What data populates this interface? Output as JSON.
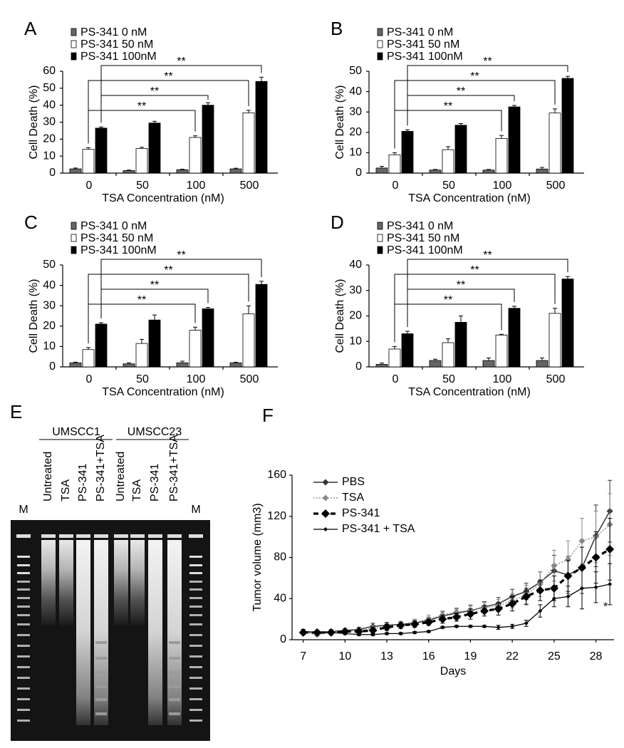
{
  "chart_data": [
    {
      "type": "bar",
      "panel_label": "A",
      "xlabel": "TSA Concentration (nM)",
      "ylabel": "Cell Death (%)",
      "categories": [
        "0",
        "50",
        "100",
        "500"
      ],
      "ylim": [
        0,
        60
      ],
      "yticks": [
        0,
        10,
        20,
        30,
        40,
        50,
        60
      ],
      "series": [
        {
          "name": "PS-341 0 nM",
          "color": "#666666",
          "values": [
            2.5,
            1.5,
            2,
            2.5
          ],
          "errors": [
            0.5,
            0.3,
            0.3,
            0.4
          ]
        },
        {
          "name": "PS-341 50 nM",
          "color": "#ffffff",
          "values": [
            14,
            14.5,
            21,
            35.5
          ],
          "errors": [
            1,
            0.7,
            1,
            1.5
          ]
        },
        {
          "name": "PS-341 100nM",
          "color": "#000000",
          "values": [
            26.5,
            29.5,
            40,
            54
          ],
          "errors": [
            0.7,
            1,
            1.5,
            2.5
          ]
        }
      ],
      "annotations": [
        "**",
        "**",
        "**",
        "**"
      ]
    },
    {
      "type": "bar",
      "panel_label": "B",
      "xlabel": "TSA Concentration (nM)",
      "ylabel": "Cell Death (%)",
      "categories": [
        "0",
        "50",
        "100",
        "500"
      ],
      "ylim": [
        0,
        50
      ],
      "yticks": [
        0,
        10,
        20,
        30,
        40,
        50
      ],
      "series": [
        {
          "name": "PS-341 0 nM",
          "color": "#666666",
          "values": [
            2.5,
            1.5,
            1.5,
            2
          ],
          "errors": [
            0.8,
            0.3,
            0.3,
            0.8
          ]
        },
        {
          "name": "PS-341 50 nM",
          "color": "#ffffff",
          "values": [
            9,
            11.5,
            17,
            29.5
          ],
          "errors": [
            1,
            1.5,
            1.5,
            2
          ]
        },
        {
          "name": "PS-341 100nM",
          "color": "#000000",
          "values": [
            20.5,
            23.5,
            32.5,
            46.5
          ],
          "errors": [
            0.8,
            0.8,
            0.7,
            1
          ]
        }
      ],
      "annotations": [
        "**",
        "**",
        "**",
        "**"
      ]
    },
    {
      "type": "bar",
      "panel_label": "C",
      "xlabel": "TSA Concentration (nM)",
      "ylabel": "Cell Death (%)",
      "categories": [
        "0",
        "50",
        "100",
        "500"
      ],
      "ylim": [
        0,
        50
      ],
      "yticks": [
        0,
        10,
        20,
        30,
        40,
        50
      ],
      "series": [
        {
          "name": "PS-341 0 nM",
          "color": "#666666",
          "values": [
            2,
            1.5,
            2,
            2
          ],
          "errors": [
            0.3,
            0.5,
            0.8,
            0.3
          ]
        },
        {
          "name": "PS-341 50 nM",
          "color": "#ffffff",
          "values": [
            8.5,
            11.5,
            18,
            26
          ],
          "errors": [
            1,
            2,
            1.5,
            4
          ]
        },
        {
          "name": "PS-341 100nM",
          "color": "#000000",
          "values": [
            21,
            23,
            28.5,
            40.5
          ],
          "errors": [
            0.7,
            2.5,
            0.7,
            1.5
          ]
        }
      ],
      "annotations": [
        "**",
        "**",
        "**",
        "**"
      ]
    },
    {
      "type": "bar",
      "panel_label": "D",
      "xlabel": "TSA Concentration (nM)",
      "ylabel": "Cell Death (%)",
      "categories": [
        "0",
        "50",
        "100",
        "500"
      ],
      "ylim": [
        0,
        40
      ],
      "yticks": [
        0,
        10,
        20,
        30,
        40
      ],
      "series": [
        {
          "name": "PS-341 0 nM",
          "color": "#666666",
          "values": [
            1,
            2.5,
            2.5,
            2.5
          ],
          "errors": [
            0.5,
            0.5,
            1,
            1
          ]
        },
        {
          "name": "PS-341 50 nM",
          "color": "#ffffff",
          "values": [
            7,
            9.5,
            12.5,
            21
          ],
          "errors": [
            1,
            1.5,
            0.3,
            2
          ]
        },
        {
          "name": "PS-341 100nM",
          "color": "#000000",
          "values": [
            13,
            17.5,
            23,
            34.5
          ],
          "errors": [
            1,
            2.5,
            0.8,
            1
          ]
        }
      ],
      "annotations": [
        "**",
        "**",
        "**",
        "**"
      ]
    },
    {
      "type": "gel",
      "panel_label": "E",
      "groups": [
        {
          "name": "UMSCC1"
        },
        {
          "name": "UMSCC23"
        }
      ],
      "lanes": [
        "M",
        "Untreated",
        "TSA",
        "PS-341",
        "PS-341+TSA",
        "Untreated",
        "TSA",
        "PS-341",
        "PS-341+TSA",
        "M"
      ]
    },
    {
      "type": "line",
      "panel_label": "F",
      "xlabel": "Days",
      "ylabel": "Tumor volume (mm3)",
      "x": [
        7,
        8,
        9,
        10,
        11,
        12,
        13,
        14,
        15,
        16,
        17,
        18,
        19,
        20,
        21,
        22,
        23,
        24,
        25,
        26,
        27,
        28,
        29
      ],
      "xlim": [
        6.2,
        29.3
      ],
      "xticks": [
        7,
        10,
        13,
        16,
        19,
        22,
        25,
        28
      ],
      "ylim": [
        0,
        160
      ],
      "yticks": [
        0,
        40,
        80,
        120,
        160
      ],
      "series": [
        {
          "name": "PBS",
          "color": "#333333",
          "line_style": "solid",
          "values": [
            8,
            7,
            8,
            9,
            10,
            13,
            14,
            15,
            16,
            19,
            23,
            26,
            28,
            32,
            35,
            42,
            47,
            56,
            67,
            63,
            70,
            101,
            125
          ],
          "errors": [
            2,
            2,
            2,
            2,
            2,
            3,
            3,
            3,
            3,
            3,
            4,
            4,
            5,
            5,
            6,
            7,
            8,
            10,
            15,
            18,
            25,
            30,
            30
          ]
        },
        {
          "name": "TSA",
          "color": "#888888",
          "line_style": "dotted",
          "values": [
            7,
            5,
            7,
            8,
            9,
            11,
            13,
            15,
            17,
            20,
            24,
            27,
            29,
            31,
            33,
            38,
            44,
            54,
            72,
            78,
            96,
            100,
            112
          ],
          "errors": [
            2,
            2,
            2,
            2,
            2,
            3,
            3,
            3,
            3,
            4,
            4,
            4,
            5,
            5,
            6,
            7,
            9,
            12,
            15,
            18,
            22,
            25,
            30
          ]
        },
        {
          "name": "PS-341",
          "color": "#000000",
          "line_style": "dashed",
          "values": [
            7,
            7,
            7,
            8,
            8,
            9,
            12,
            14,
            15,
            17,
            20,
            22,
            25,
            28,
            30,
            35,
            42,
            48,
            50,
            62,
            70,
            80,
            88
          ],
          "errors": [
            2,
            2,
            2,
            2,
            2,
            3,
            3,
            3,
            3,
            3,
            4,
            4,
            5,
            5,
            6,
            7,
            8,
            10,
            12,
            15,
            20,
            25,
            30
          ]
        },
        {
          "name": "PS-341 + TSA",
          "color": "#000000",
          "line_style": "thin",
          "values": [
            8,
            7,
            7,
            6,
            5,
            5,
            6,
            6,
            7,
            8,
            12,
            13,
            13,
            13,
            12,
            13,
            16,
            28,
            40,
            42,
            50,
            51,
            54
          ],
          "errors": [
            2,
            2,
            2,
            1,
            1,
            1,
            1,
            1,
            1,
            1,
            1,
            1,
            1,
            1,
            2,
            2,
            3,
            6,
            8,
            10,
            20,
            15,
            20
          ]
        }
      ],
      "annotations": [
        "*"
      ]
    }
  ]
}
